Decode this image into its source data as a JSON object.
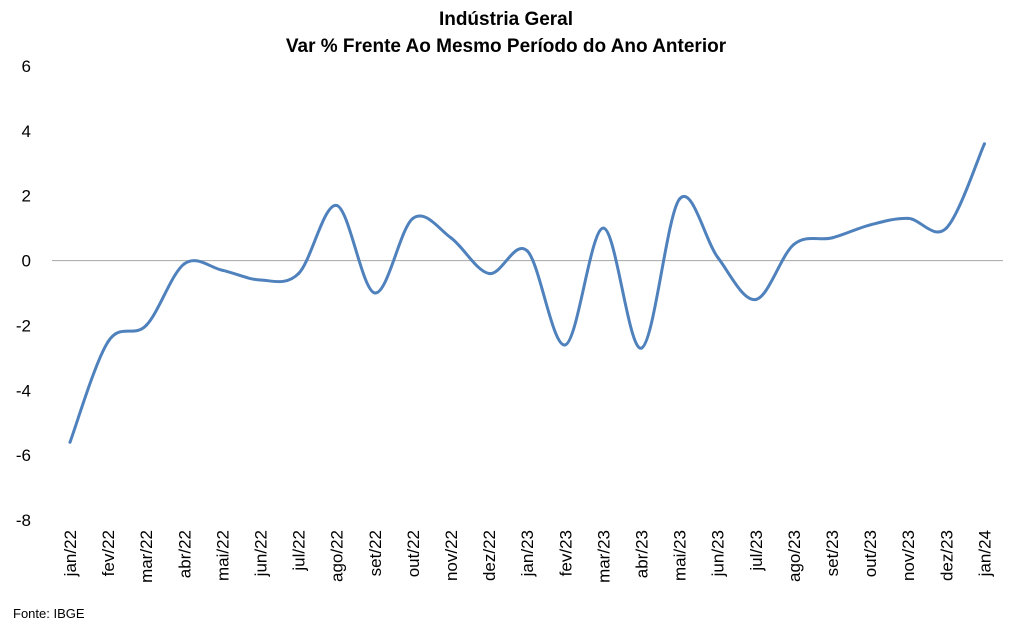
{
  "chart_data": {
    "type": "line",
    "title": "Indústria Geral",
    "subtitle": "Var % Frente Ao Mesmo Período do Ano Anterior",
    "xlabel": "",
    "ylabel": "",
    "ylim": [
      -8,
      6
    ],
    "yticks": [
      "6",
      "4",
      "2",
      "0",
      "-2",
      "-4",
      "-6",
      "-8"
    ],
    "grid": false,
    "legend": "none",
    "smooth": true,
    "color": "#4F81BD",
    "zero_line_color": "#A6A6A6",
    "categories": [
      "jan/22",
      "fev/22",
      "mar/22",
      "abr/22",
      "mai/22",
      "jun/22",
      "jul/22",
      "ago/22",
      "set/22",
      "out/22",
      "nov/22",
      "dez/22",
      "jan/23",
      "fev/23",
      "mar/23",
      "abr/23",
      "mai/23",
      "jun/23",
      "jul/23",
      "ago/23",
      "set/23",
      "out/23",
      "nov/23",
      "dez/23",
      "jan/24"
    ],
    "series": [
      {
        "values": [
          -5.6,
          -2.5,
          -2.0,
          -0.1,
          -0.3,
          -0.6,
          -0.4,
          1.7,
          -1.0,
          1.3,
          0.7,
          -0.4,
          0.3,
          -2.6,
          1.0,
          -2.7,
          1.9,
          0.1,
          -1.2,
          0.5,
          0.7,
          1.1,
          1.3,
          1.0,
          3.6
        ]
      }
    ]
  },
  "source": "Fonte: IBGE"
}
